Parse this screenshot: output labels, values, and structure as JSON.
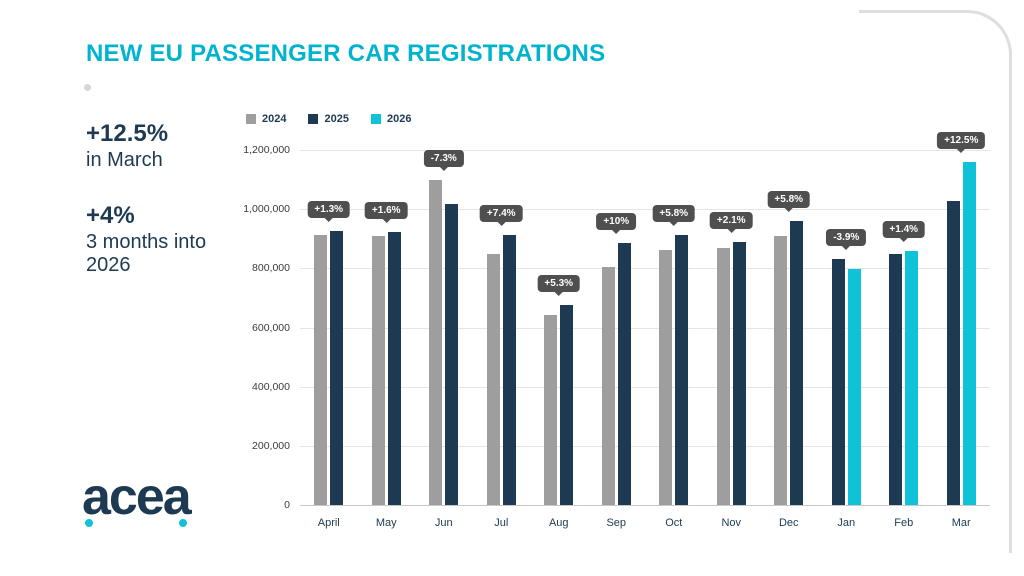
{
  "title": "NEW EU PASSENGER CAR REGISTRATIONS",
  "highlights": {
    "stat1_value": "+12.5%",
    "stat1_label": "in March",
    "stat2_value": "+4%",
    "stat2_label": "3 months into 2026"
  },
  "logo_text": "acea",
  "colors": {
    "accent_cyan": "#00b4cf",
    "navy": "#1d3a52",
    "bar_gray": "#9e9e9e",
    "bar_navy": "#1d3a52",
    "bar_cyan": "#10c2d8",
    "badge_bg": "#4f4f4f"
  },
  "chart_data": {
    "type": "bar",
    "title": "NEW EU PASSENGER CAR REGISTRATIONS",
    "categories": [
      "April",
      "May",
      "Jun",
      "Jul",
      "Aug",
      "Sep",
      "Oct",
      "Nov",
      "Dec",
      "Jan",
      "Feb",
      "Mar"
    ],
    "series": [
      {
        "name": "2024",
        "color": "#9e9e9e",
        "values": [
          914000,
          908000,
          1098000,
          850000,
          642000,
          806000,
          863000,
          870000,
          908000,
          null,
          null,
          null
        ]
      },
      {
        "name": "2025",
        "color": "#1d3a52",
        "values": [
          926000,
          923000,
          1018000,
          913000,
          676000,
          887000,
          913000,
          888000,
          960000,
          830000,
          848000,
          1029000
        ]
      },
      {
        "name": "2026",
        "color": "#10c2d8",
        "values": [
          null,
          null,
          null,
          null,
          null,
          null,
          null,
          null,
          null,
          798000,
          860000,
          1158000
        ]
      }
    ],
    "point_labels": [
      "+1.3%",
      "+1.6%",
      "-7.3%",
      "+7.4%",
      "+5.3%",
      "+10%",
      "+5.8%",
      "+2.1%",
      "+5.8%",
      "-3.9%",
      "+1.4%",
      "+12.5%"
    ],
    "ylim": [
      0,
      1200000
    ],
    "ytick_labels": [
      "1,200,000",
      "1,000,000",
      "800,000",
      "600,000",
      "400,000",
      "200,000",
      "0"
    ],
    "grid": true,
    "legend_position": "top-left"
  }
}
